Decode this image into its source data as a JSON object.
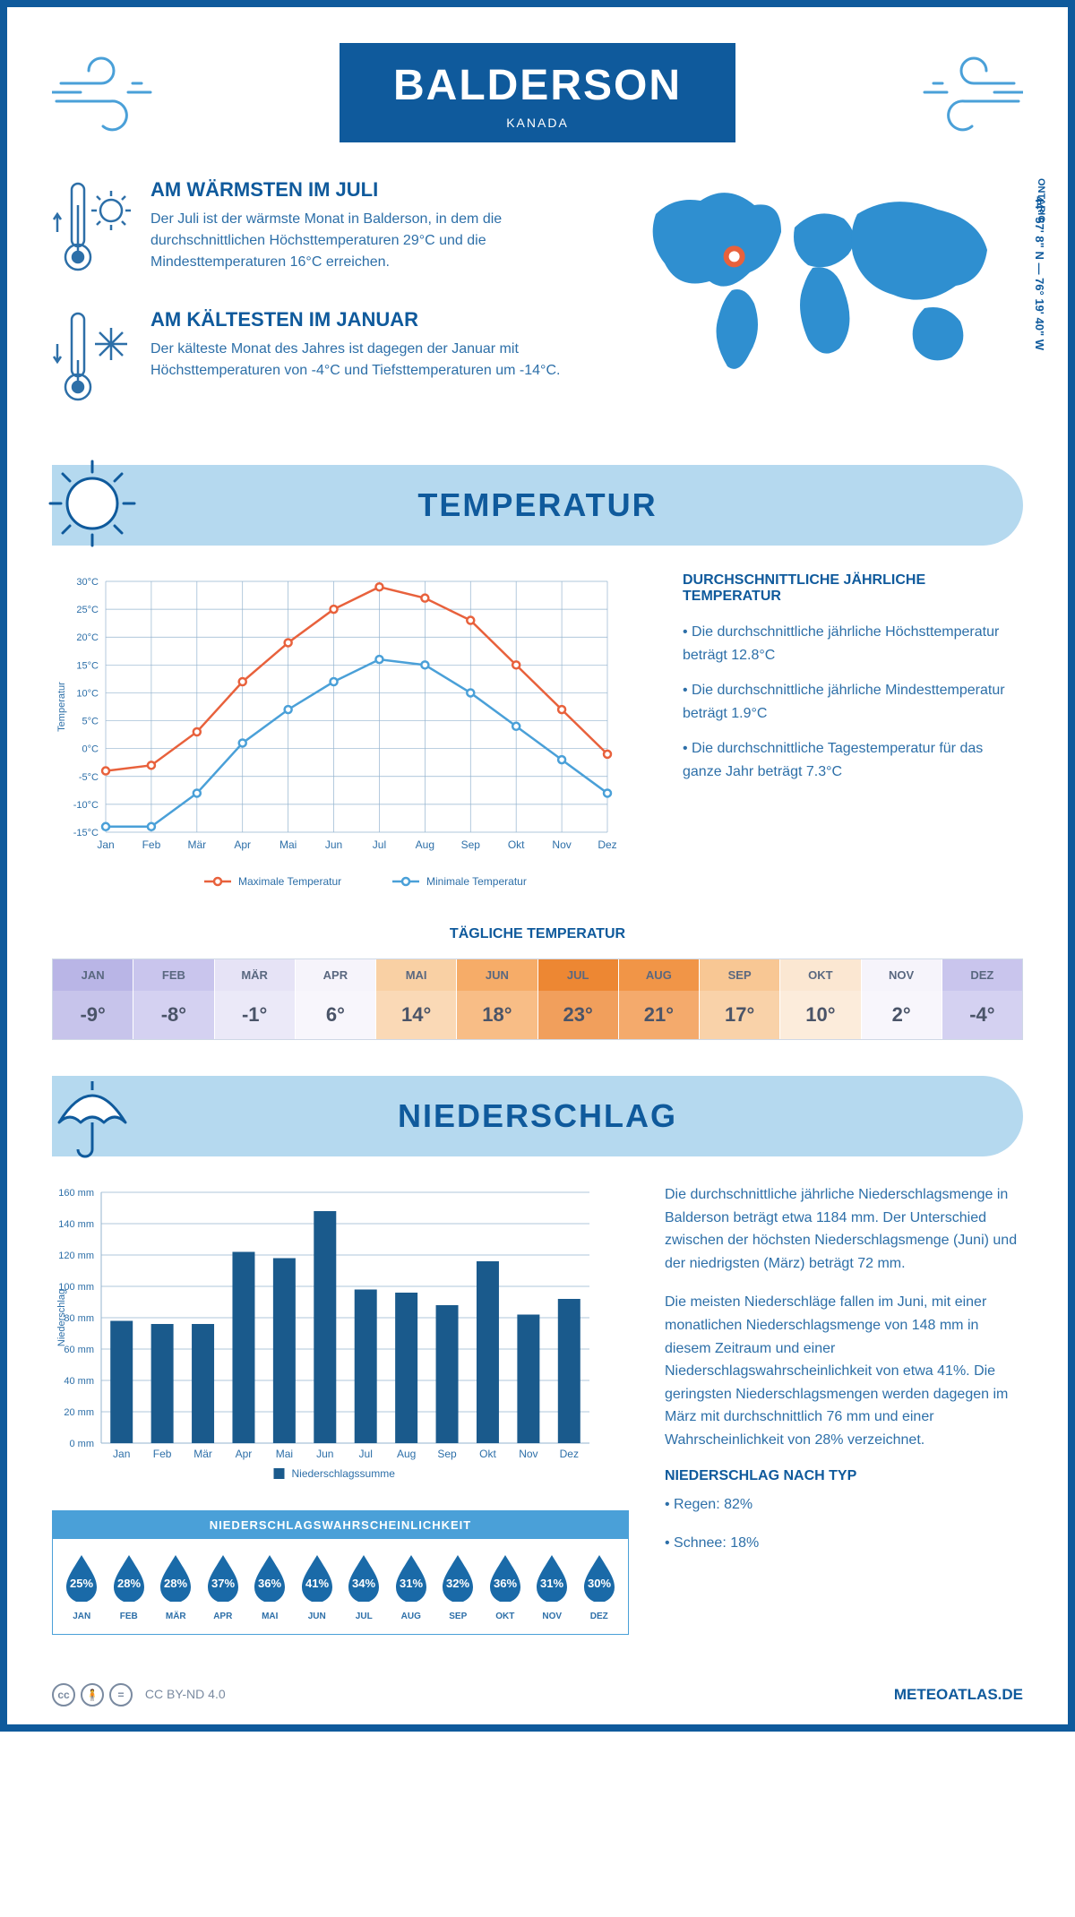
{
  "header": {
    "city": "BALDERSON",
    "country": "KANADA"
  },
  "location": {
    "region": "ONTARIO",
    "coords": "44° 57' 8\" N — 76° 19' 40\" W",
    "marker_pct": [
      28,
      38
    ]
  },
  "facts": {
    "warm": {
      "title": "AM WÄRMSTEN IM JULI",
      "text": "Der Juli ist der wärmste Monat in Balderson, in dem die durchschnittlichen Höchsttemperaturen 29°C und die Mindesttemperaturen 16°C erreichen."
    },
    "cold": {
      "title": "AM KÄLTESTEN IM JANUAR",
      "text": "Der kälteste Monat des Jahres ist dagegen der Januar mit Höchsttemperaturen von -4°C und Tiefsttemperaturen um -14°C."
    }
  },
  "sections": {
    "temperature": "TEMPERATUR",
    "precip": "NIEDERSCHLAG"
  },
  "months": [
    "Jan",
    "Feb",
    "Mär",
    "Apr",
    "Mai",
    "Jun",
    "Jul",
    "Aug",
    "Sep",
    "Okt",
    "Nov",
    "Dez"
  ],
  "months_upper": [
    "JAN",
    "FEB",
    "MÄR",
    "APR",
    "MAI",
    "JUN",
    "JUL",
    "AUG",
    "SEP",
    "OKT",
    "NOV",
    "DEZ"
  ],
  "temp_chart": {
    "type": "line",
    "ylabel": "Temperatur",
    "ymin": -15,
    "ymax": 30,
    "ystep": 5,
    "max_series": {
      "label": "Maximale Temperatur",
      "color": "#e8613c",
      "values": [
        -4,
        -3,
        3,
        12,
        19,
        25,
        29,
        27,
        23,
        15,
        7,
        -1
      ]
    },
    "min_series": {
      "label": "Minimale Temperatur",
      "color": "#4aa0d8",
      "values": [
        -14,
        -14,
        -8,
        1,
        7,
        12,
        16,
        15,
        10,
        4,
        -2,
        -8
      ]
    },
    "grid_color": "#95b4cf"
  },
  "avg_temp": {
    "title": "DURCHSCHNITTLICHE JÄHRLICHE TEMPERATUR",
    "bullets": [
      "• Die durchschnittliche jährliche Höchsttemperatur beträgt 12.8°C",
      "• Die durchschnittliche jährliche Mindesttemperatur beträgt 1.9°C",
      "• Die durchschnittliche Tagestemperatur für das ganze Jahr beträgt 7.3°C"
    ]
  },
  "daily": {
    "title": "TÄGLICHE TEMPERATUR",
    "values": [
      "-9°",
      "-8°",
      "-1°",
      "6°",
      "14°",
      "18°",
      "23°",
      "21°",
      "17°",
      "10°",
      "2°",
      "-4°"
    ],
    "colors": [
      "#b9b5e6",
      "#c9c5ed",
      "#e6e3f6",
      "#f6f4fb",
      "#f9d0a4",
      "#f6ac68",
      "#ed8733",
      "#f19547",
      "#f8c794",
      "#fbe7d2",
      "#f6f4fb",
      "#c9c5ed"
    ]
  },
  "precip_chart": {
    "type": "bar",
    "ylabel": "Niederschlag",
    "ymin": 0,
    "ymax": 160,
    "ystep": 20,
    "values": [
      78,
      76,
      76,
      122,
      118,
      148,
      98,
      96,
      88,
      116,
      82,
      92
    ],
    "bar_color": "#1a5a8c",
    "grid_color": "#95b4cf",
    "legend": "Niederschlagssumme"
  },
  "precip_text": {
    "p1": "Die durchschnittliche jährliche Niederschlagsmenge in Balderson beträgt etwa 1184 mm. Der Unterschied zwischen der höchsten Niederschlagsmenge (Juni) und der niedrigsten (März) beträgt 72 mm.",
    "p2": "Die meisten Niederschläge fallen im Juni, mit einer monatlichen Niederschlagsmenge von 148 mm in diesem Zeitraum und einer Niederschlagswahrscheinlichkeit von etwa 41%. Die geringsten Niederschlagsmengen werden dagegen im März mit durchschnittlich 76 mm und einer Wahrscheinlichkeit von 28% verzeichnet.",
    "type_title": "NIEDERSCHLAG NACH TYP",
    "type_rain": "• Regen: 82%",
    "type_snow": "• Schnee: 18%"
  },
  "probability": {
    "title": "NIEDERSCHLAGSWAHRSCHEINLICHKEIT",
    "values": [
      "25%",
      "28%",
      "28%",
      "37%",
      "36%",
      "41%",
      "34%",
      "31%",
      "32%",
      "36%",
      "31%",
      "30%"
    ],
    "drop_color": "#1a6aa8"
  },
  "footer": {
    "license": "CC BY-ND 4.0",
    "site": "METEOATLAS.DE"
  },
  "colors": {
    "primary": "#0f5a9c",
    "banner": "#b5d9ef",
    "text": "#2d6fa8"
  }
}
